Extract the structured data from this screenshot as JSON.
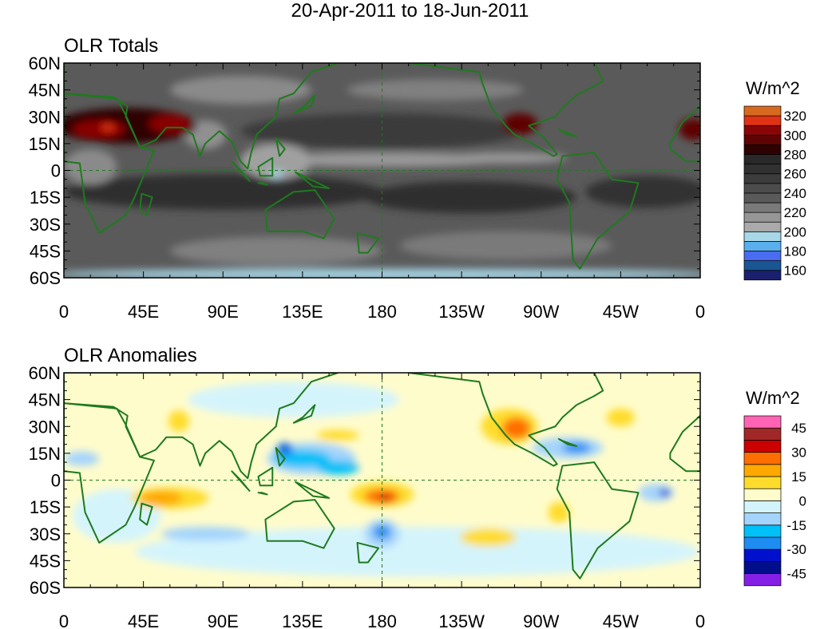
{
  "title": "20-Apr-2011 to 18-Jun-2011",
  "chart_data": [
    {
      "type": "heatmap",
      "title": "OLR Totals",
      "units": "W/m^2",
      "lat_ticks": [
        "60N",
        "45N",
        "30N",
        "15N",
        "0",
        "15S",
        "30S",
        "45S",
        "60S"
      ],
      "lon_ticks": [
        "0",
        "45E",
        "90E",
        "135E",
        "180",
        "135W",
        "90W",
        "45W",
        "0"
      ],
      "colorbar": {
        "labels": [
          "320",
          "300",
          "280",
          "260",
          "240",
          "220",
          "200",
          "180",
          "160"
        ],
        "levels": [
          160,
          170,
          180,
          190,
          200,
          210,
          220,
          230,
          240,
          250,
          260,
          270,
          280,
          290,
          300,
          310,
          320
        ],
        "colors": [
          "#1a1f6e",
          "#1a5694",
          "#4a6cf0",
          "#5ab0ee",
          "#a8d8e8",
          "#aaaaaa",
          "#969696",
          "#7a7a7a",
          "#5a5a5a",
          "#4c4c4c",
          "#3c3c3c",
          "#313131",
          "#292929",
          "#2e0202",
          "#5e0404",
          "#8a0606",
          "#e03214",
          "#d86a20"
        ]
      }
    },
    {
      "type": "heatmap",
      "title": "OLR Anomalies",
      "units": "W/m^2",
      "lat_ticks": [
        "60N",
        "45N",
        "30N",
        "15N",
        "0",
        "15S",
        "30S",
        "45S",
        "60S"
      ],
      "lon_ticks": [
        "0",
        "45E",
        "90E",
        "135E",
        "180",
        "135W",
        "90W",
        "45W",
        "0"
      ],
      "colorbar": {
        "labels": [
          "45",
          "30",
          "15",
          "0",
          "-15",
          "-30",
          "-45"
        ],
        "levels": [
          -45,
          -37.5,
          -30,
          -22.5,
          -15,
          -7.5,
          0,
          7.5,
          15,
          22.5,
          30,
          37.5,
          45
        ],
        "colors": [
          "#8420e6",
          "#000e8c",
          "#0010cc",
          "#1e8cf0",
          "#00c0f8",
          "#a4d4fc",
          "#d4f4fc",
          "#fffccc",
          "#ffdc2c",
          "#ffa800",
          "#ff6e00",
          "#cc0000",
          "#a02828",
          "#ff64b4"
        ]
      }
    }
  ]
}
